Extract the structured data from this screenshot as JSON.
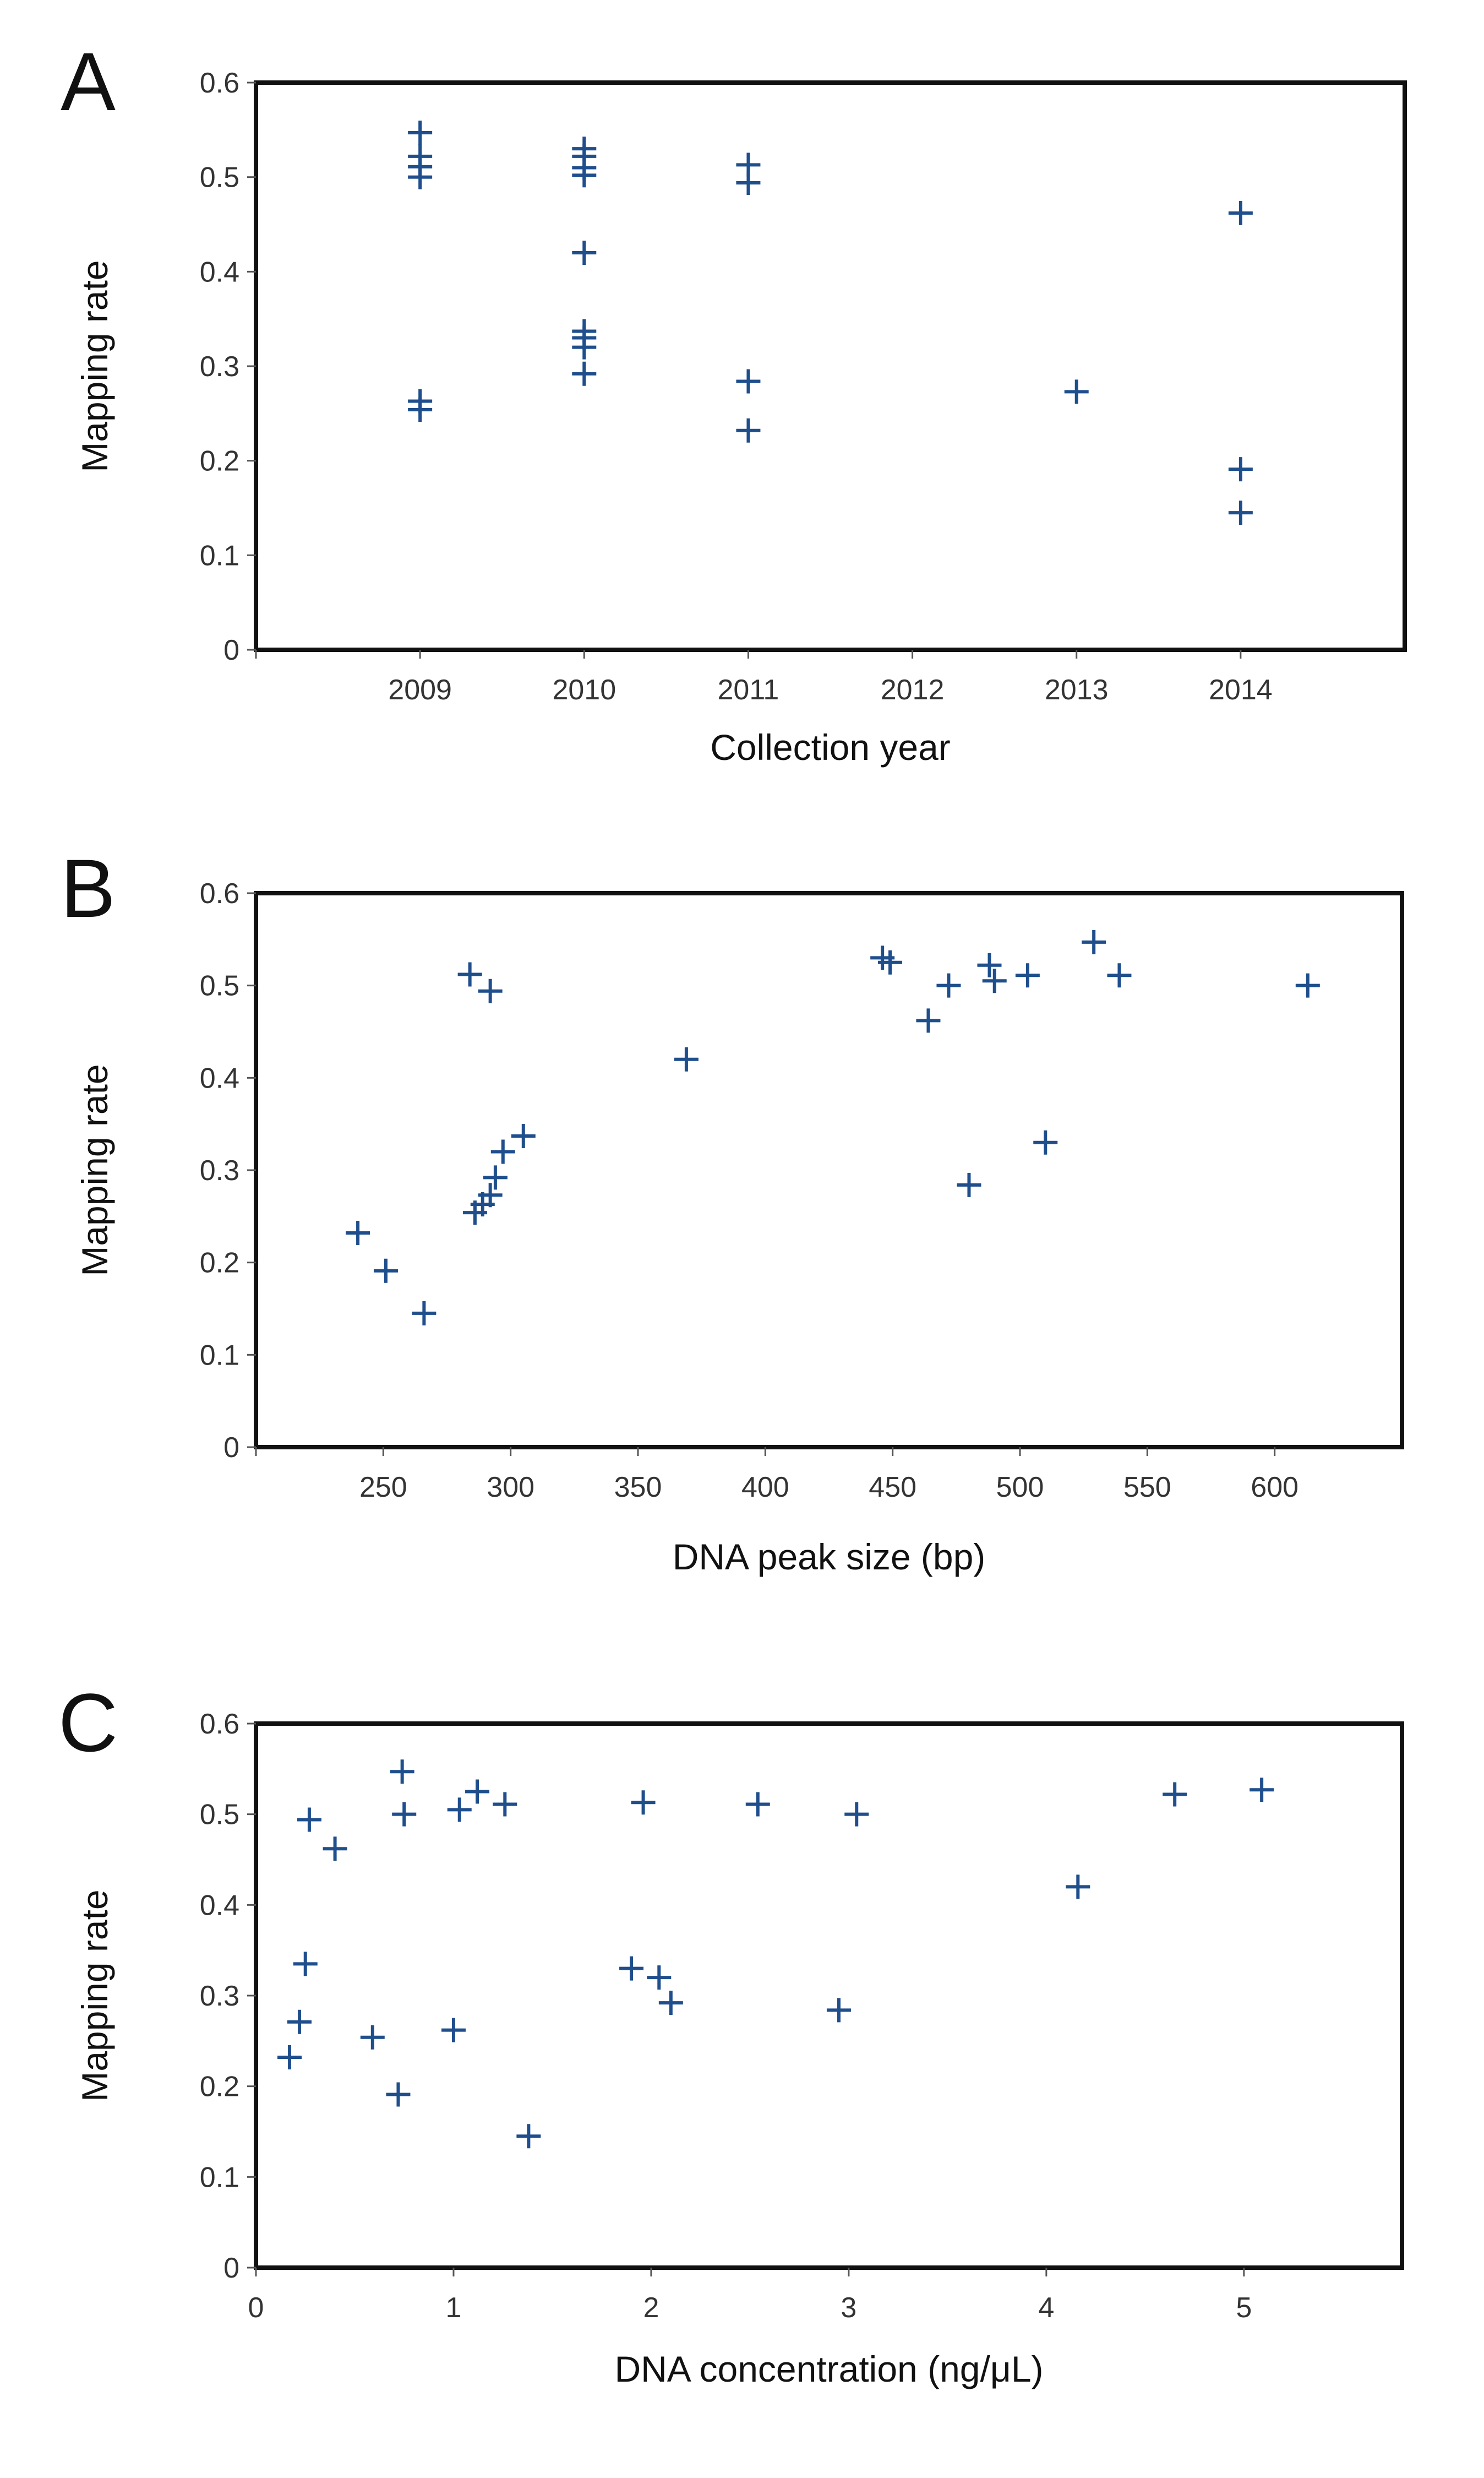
{
  "chart_data": [
    {
      "panel": "A",
      "type": "scatter",
      "xlabel": "Collection year",
      "ylabel": "Mapping rate",
      "xlim": [
        2008,
        2015
      ],
      "ylim": [
        0,
        0.6
      ],
      "xticks": [
        2009,
        2010,
        2011,
        2012,
        2013,
        2014
      ],
      "yticks": [
        0,
        0.1,
        0.2,
        0.3,
        0.4,
        0.5,
        0.6
      ],
      "grid": false,
      "marker": "+",
      "color": "#1f4e8c",
      "points": [
        [
          2009,
          0.547
        ],
        [
          2009,
          0.522
        ],
        [
          2009,
          0.511
        ],
        [
          2009,
          0.5
        ],
        [
          2009,
          0.263
        ],
        [
          2009,
          0.254
        ],
        [
          2010,
          0.53
        ],
        [
          2010,
          0.522
        ],
        [
          2010,
          0.51
        ],
        [
          2010,
          0.502
        ],
        [
          2010,
          0.42
        ],
        [
          2010,
          0.337
        ],
        [
          2010,
          0.33
        ],
        [
          2010,
          0.32
        ],
        [
          2010,
          0.292
        ],
        [
          2011,
          0.513
        ],
        [
          2011,
          0.494
        ],
        [
          2011,
          0.284
        ],
        [
          2011,
          0.232
        ],
        [
          2013,
          0.273
        ],
        [
          2014,
          0.462
        ],
        [
          2014,
          0.191
        ],
        [
          2014,
          0.145
        ]
      ]
    },
    {
      "panel": "B",
      "type": "scatter",
      "xlabel": "DNA peak size (bp)",
      "ylabel": "Mapping rate",
      "xlim": [
        200,
        650
      ],
      "ylim": [
        0,
        0.6
      ],
      "xticks": [
        250,
        300,
        350,
        400,
        450,
        500,
        550,
        600
      ],
      "yticks": [
        0,
        0.1,
        0.2,
        0.3,
        0.4,
        0.5,
        0.6
      ],
      "grid": false,
      "marker": "+",
      "color": "#1f4e8c",
      "points": [
        [
          240,
          0.232
        ],
        [
          251,
          0.191
        ],
        [
          266,
          0.145
        ],
        [
          284,
          0.512
        ],
        [
          292,
          0.494
        ],
        [
          286,
          0.254
        ],
        [
          289,
          0.263
        ],
        [
          292,
          0.273
        ],
        [
          294,
          0.292
        ],
        [
          297,
          0.32
        ],
        [
          305,
          0.337
        ],
        [
          369,
          0.42
        ],
        [
          446,
          0.53
        ],
        [
          449,
          0.525
        ],
        [
          464,
          0.462
        ],
        [
          472,
          0.5
        ],
        [
          480,
          0.284
        ],
        [
          488,
          0.522
        ],
        [
          490,
          0.505
        ],
        [
          503,
          0.511
        ],
        [
          510,
          0.33
        ],
        [
          529,
          0.547
        ],
        [
          539,
          0.511
        ],
        [
          613,
          0.5
        ]
      ]
    },
    {
      "panel": "C",
      "type": "scatter",
      "xlabel": "DNA concentration (ng/μL)",
      "ylabel": "Mapping rate",
      "xlim": [
        0,
        5.8
      ],
      "ylim": [
        0,
        0.6
      ],
      "xticks": [
        0,
        1,
        2,
        3,
        4,
        5
      ],
      "yticks": [
        0,
        0.1,
        0.2,
        0.3,
        0.4,
        0.5,
        0.6
      ],
      "grid": false,
      "marker": "+",
      "color": "#1f4e8c",
      "points": [
        [
          0.17,
          0.232
        ],
        [
          0.22,
          0.271
        ],
        [
          0.25,
          0.335
        ],
        [
          0.27,
          0.494
        ],
        [
          0.4,
          0.462
        ],
        [
          0.59,
          0.254
        ],
        [
          0.72,
          0.191
        ],
        [
          0.74,
          0.547
        ],
        [
          0.75,
          0.5
        ],
        [
          1.0,
          0.262
        ],
        [
          1.03,
          0.505
        ],
        [
          1.12,
          0.525
        ],
        [
          1.26,
          0.511
        ],
        [
          1.38,
          0.145
        ],
        [
          1.9,
          0.33
        ],
        [
          1.96,
          0.513
        ],
        [
          2.04,
          0.32
        ],
        [
          2.1,
          0.292
        ],
        [
          2.54,
          0.511
        ],
        [
          2.95,
          0.284
        ],
        [
          3.04,
          0.5
        ],
        [
          4.16,
          0.42
        ],
        [
          4.65,
          0.522
        ],
        [
          5.09,
          0.527
        ]
      ]
    }
  ]
}
